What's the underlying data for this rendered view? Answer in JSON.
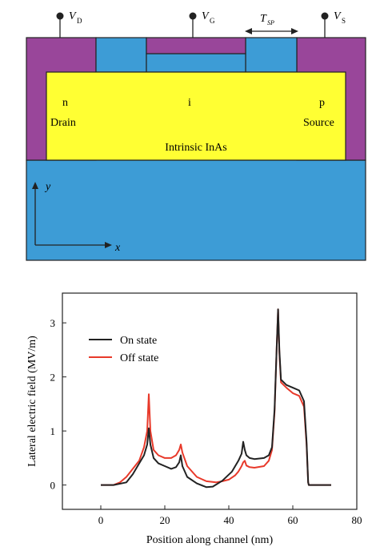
{
  "device": {
    "terminals": [
      {
        "id": "drain",
        "label": "V",
        "sub": "D"
      },
      {
        "id": "gate",
        "label": "V",
        "sub": "G"
      },
      {
        "id": "source",
        "label": "V",
        "sub": "S"
      }
    ],
    "spacer_label": "T",
    "spacer_sub": "SP",
    "regions": {
      "n": "n",
      "drain": "Drain",
      "i": "i",
      "p": "p",
      "source": "Source",
      "channel": "Intrinsic InAs"
    },
    "axes": {
      "y": "y",
      "x": "x"
    },
    "colors": {
      "metal": "#99469a",
      "oxide": "#3d9cd6",
      "channel": "#ffff33",
      "substrate": "#3d9cd6",
      "outline": "#222222"
    }
  },
  "chart_data": {
    "type": "line",
    "xlabel": "Position along channel (nm)",
    "ylabel": "Lateral electric field (MV/m)",
    "xlim": [
      -12,
      80
    ],
    "ylim": [
      -0.45,
      3.55
    ],
    "xticks": [
      0,
      20,
      40,
      60,
      80
    ],
    "yticks": [
      0,
      1,
      2,
      3
    ],
    "legend_position": "top-left",
    "series": [
      {
        "name": "On state",
        "color": "#222222",
        "x": [
          0,
          4,
          8,
          10,
          12,
          13.5,
          14.5,
          15,
          15.5,
          16.5,
          18,
          20,
          22,
          23.5,
          24.5,
          25,
          25.5,
          27,
          30,
          33,
          35,
          38,
          41,
          43,
          44,
          44.5,
          45,
          45.5,
          46.5,
          48,
          51,
          52.5,
          53.5,
          54.3,
          55,
          55.4,
          55.8,
          56.3,
          58,
          60,
          62,
          63.5,
          64.3,
          64.8,
          65,
          66,
          72
        ],
        "values": [
          0,
          0,
          0.05,
          0.2,
          0.4,
          0.55,
          0.75,
          1.05,
          0.75,
          0.5,
          0.4,
          0.35,
          0.3,
          0.33,
          0.42,
          0.55,
          0.35,
          0.15,
          0.03,
          -0.04,
          -0.03,
          0.08,
          0.25,
          0.45,
          0.58,
          0.8,
          0.65,
          0.55,
          0.5,
          0.48,
          0.5,
          0.55,
          0.7,
          1.4,
          2.6,
          3.25,
          2.5,
          1.95,
          1.85,
          1.8,
          1.75,
          1.55,
          0.8,
          0.05,
          0,
          0,
          0
        ]
      },
      {
        "name": "Off state",
        "color": "#e8392a",
        "x": [
          0,
          4,
          6,
          8,
          10,
          12,
          13.5,
          14.5,
          15,
          15.5,
          16.5,
          18,
          20,
          22,
          23.5,
          24.5,
          25,
          25.5,
          27,
          30,
          33,
          36,
          38,
          40,
          42,
          43,
          44,
          44.5,
          45,
          45.5,
          46.5,
          48,
          51,
          52.5,
          53.5,
          54.3,
          55,
          55.4,
          55.8,
          56.3,
          58,
          60,
          62,
          63.5,
          64.3,
          64.8,
          65,
          66,
          72
        ],
        "values": [
          0,
          0,
          0.05,
          0.15,
          0.3,
          0.45,
          0.7,
          1.0,
          1.68,
          1.0,
          0.65,
          0.55,
          0.5,
          0.5,
          0.55,
          0.65,
          0.75,
          0.6,
          0.35,
          0.15,
          0.07,
          0.05,
          0.07,
          0.1,
          0.18,
          0.25,
          0.35,
          0.42,
          0.45,
          0.36,
          0.33,
          0.32,
          0.35,
          0.45,
          0.65,
          1.35,
          2.6,
          3.25,
          2.45,
          1.9,
          1.8,
          1.7,
          1.65,
          1.45,
          0.75,
          0.05,
          0,
          0,
          0
        ]
      }
    ]
  }
}
